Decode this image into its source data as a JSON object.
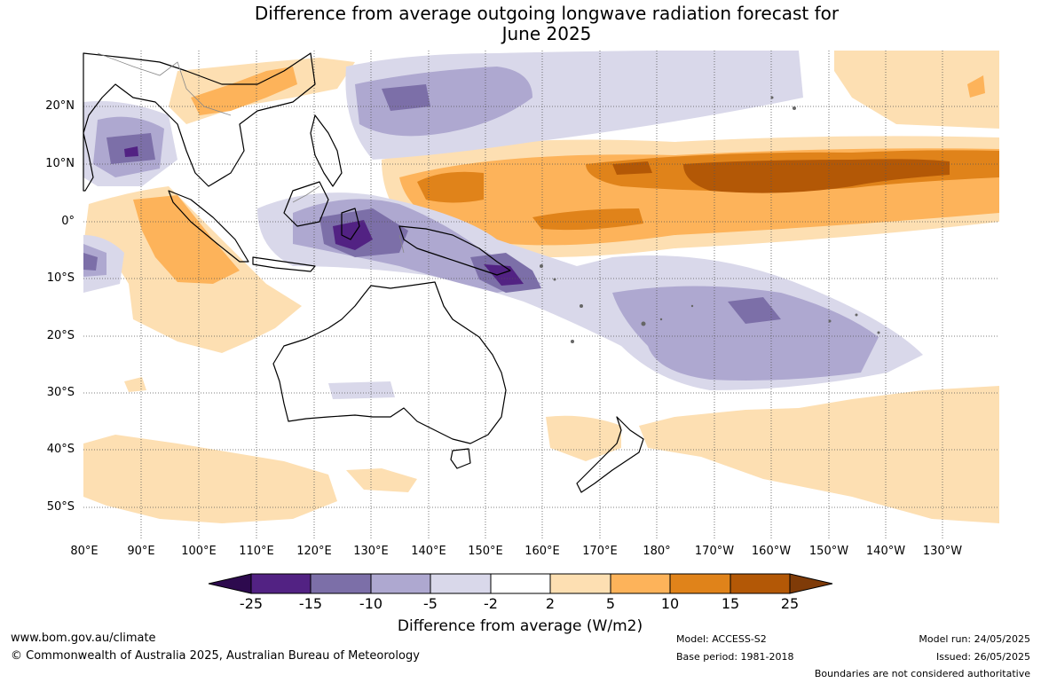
{
  "title": {
    "line1": "Difference from average outgoing longwave radiation forecast for",
    "line2": "June 2025"
  },
  "map": {
    "lat_labels": [
      "20°N",
      "10°N",
      "0°",
      "10°S",
      "20°S",
      "30°S",
      "40°S",
      "50°S"
    ],
    "lon_labels": [
      "80°E",
      "90°E",
      "100°E",
      "110°E",
      "120°E",
      "130°E",
      "140°E",
      "150°E",
      "160°E",
      "170°E",
      "180°",
      "170°W",
      "160°W",
      "150°W",
      "140°W",
      "130°W"
    ]
  },
  "colorbar": {
    "ticks": [
      "-25",
      "-15",
      "-10",
      "-5",
      "-2",
      "2",
      "5",
      "10",
      "15",
      "25"
    ],
    "colors": [
      "#2d0a4e",
      "#522283",
      "#7c6fa8",
      "#aea8d0",
      "#d9d8ea",
      "#ffffff",
      "#fddfb2",
      "#fdb35a",
      "#e0831a",
      "#b35806",
      "#7f3b08"
    ],
    "title": "Difference from average (W/m2)"
  },
  "footer": {
    "website": "www.bom.gov.au/climate",
    "copyright": "© Commonwealth of Australia 2025, Australian Bureau of Meteorology",
    "model": "Model: ACCESS-S2",
    "base_period": "Base period: 1981-2018",
    "model_run": "Model run: 24/05/2025",
    "issued": "Issued: 26/05/2025",
    "disclaimer": "Boundaries are not considered authoritative"
  }
}
